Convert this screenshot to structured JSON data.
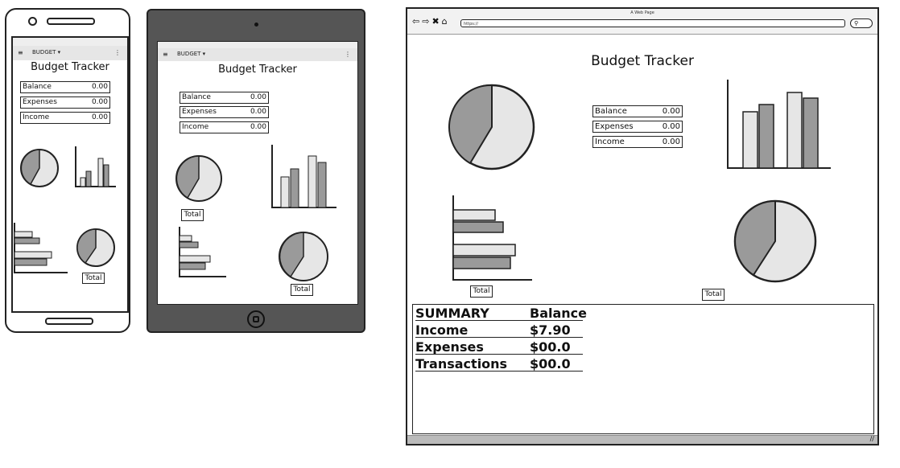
{
  "app": {
    "heading": "Budget Tracker",
    "menu_label": "BUDGET ▾",
    "total_label": "Total"
  },
  "fields": [
    {
      "label": "Balance",
      "value": "0.00"
    },
    {
      "label": "Expenses",
      "value": "0.00"
    },
    {
      "label": "Income",
      "value": "0.00"
    }
  ],
  "browser": {
    "window_title": "A Web Page",
    "url": "https://"
  },
  "summary": {
    "header": [
      "SUMMARY",
      "Balance"
    ],
    "rows": [
      {
        "label": "Income",
        "value": "$7.90"
      },
      {
        "label": "Expenses",
        "value": "$00.0"
      },
      {
        "label": "Transactions",
        "value": "$00.0"
      }
    ]
  },
  "colors": {
    "light": "#e6e6e6",
    "dark": "#9a9a9a",
    "frame": "#555555"
  },
  "icons": [
    "menu-icon",
    "more-icon",
    "back-icon",
    "forward-icon",
    "close-icon",
    "home-icon",
    "search-icon",
    "resize-icon"
  ]
}
